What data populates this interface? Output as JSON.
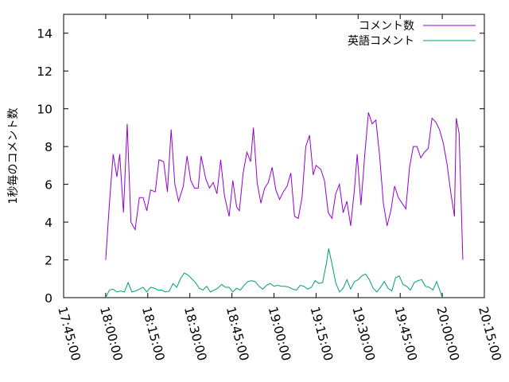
{
  "chart_data": {
    "type": "line",
    "ylabel": "1秒毎のコメント数",
    "xlabel": "",
    "title": "",
    "ylim": [
      0,
      15
    ],
    "xlim": [
      "17:45:00",
      "20:15:00"
    ],
    "yticks": [
      0,
      2,
      4,
      6,
      8,
      10,
      12,
      14
    ],
    "xticks": [
      "17:45:00",
      "18:00:00",
      "18:15:00",
      "18:30:00",
      "18:45:00",
      "19:00:00",
      "19:15:00",
      "19:30:00",
      "19:45:00",
      "20:00:00",
      "20:15:00"
    ],
    "legend_position": "top-right",
    "grid": false,
    "series": [
      {
        "name": "コメント数",
        "color": "#9400d3",
        "points": [
          [
            "18:00:00",
            2.0
          ],
          [
            "18:01:20",
            5.0
          ],
          [
            "18:02:40",
            7.6
          ],
          [
            "18:04:00",
            6.4
          ],
          [
            "18:05:00",
            7.6
          ],
          [
            "18:06:20",
            4.5
          ],
          [
            "18:07:40",
            9.2
          ],
          [
            "18:09:00",
            4.0
          ],
          [
            "18:10:30",
            3.6
          ],
          [
            "18:12:00",
            5.3
          ],
          [
            "18:13:20",
            5.3
          ],
          [
            "18:14:40",
            4.6
          ],
          [
            "18:16:00",
            5.7
          ],
          [
            "18:17:40",
            5.6
          ],
          [
            "18:19:00",
            7.3
          ],
          [
            "18:20:40",
            7.2
          ],
          [
            "18:22:00",
            5.6
          ],
          [
            "18:23:20",
            8.9
          ],
          [
            "18:24:40",
            6.0
          ],
          [
            "18:26:00",
            5.1
          ],
          [
            "18:27:40",
            5.9
          ],
          [
            "18:29:00",
            7.5
          ],
          [
            "18:30:20",
            6.2
          ],
          [
            "18:31:40",
            5.8
          ],
          [
            "18:33:00",
            5.8
          ],
          [
            "18:34:00",
            7.5
          ],
          [
            "18:35:40",
            6.3
          ],
          [
            "18:37:00",
            5.8
          ],
          [
            "18:38:20",
            6.1
          ],
          [
            "18:39:40",
            5.5
          ],
          [
            "18:41:00",
            7.3
          ],
          [
            "18:42:20",
            5.4
          ],
          [
            "18:44:00",
            4.3
          ],
          [
            "18:45:20",
            6.2
          ],
          [
            "18:46:40",
            4.8
          ],
          [
            "18:47:40",
            4.6
          ],
          [
            "18:49:00",
            6.6
          ],
          [
            "18:50:20",
            7.7
          ],
          [
            "18:51:40",
            7.2
          ],
          [
            "18:52:40",
            9.0
          ],
          [
            "18:54:00",
            6.1
          ],
          [
            "18:55:20",
            5.0
          ],
          [
            "18:56:40",
            5.8
          ],
          [
            "18:58:00",
            6.1
          ],
          [
            "18:59:20",
            6.9
          ],
          [
            "19:00:40",
            5.7
          ],
          [
            "19:02:00",
            5.2
          ],
          [
            "19:03:20",
            5.6
          ],
          [
            "19:04:40",
            5.9
          ],
          [
            "19:06:00",
            6.6
          ],
          [
            "19:07:20",
            4.3
          ],
          [
            "19:08:40",
            4.2
          ],
          [
            "19:10:00",
            5.3
          ],
          [
            "19:11:20",
            8.0
          ],
          [
            "19:12:40",
            8.6
          ],
          [
            "19:14:00",
            6.5
          ],
          [
            "19:15:00",
            7.0
          ],
          [
            "19:16:40",
            6.8
          ],
          [
            "19:18:00",
            6.2
          ],
          [
            "19:19:20",
            4.5
          ],
          [
            "19:20:40",
            4.2
          ],
          [
            "19:22:00",
            5.5
          ],
          [
            "19:23:20",
            6.0
          ],
          [
            "19:24:40",
            4.5
          ],
          [
            "19:26:00",
            5.1
          ],
          [
            "19:27:20",
            3.8
          ],
          [
            "19:28:40",
            5.7
          ],
          [
            "19:29:40",
            7.6
          ],
          [
            "19:31:00",
            4.9
          ],
          [
            "19:32:20",
            7.5
          ],
          [
            "19:33:40",
            9.8
          ],
          [
            "19:35:00",
            9.2
          ],
          [
            "19:36:20",
            9.4
          ],
          [
            "19:37:40",
            7.5
          ],
          [
            "19:39:00",
            5.0
          ],
          [
            "19:40:20",
            3.8
          ],
          [
            "19:41:40",
            4.6
          ],
          [
            "19:43:00",
            5.9
          ],
          [
            "19:44:20",
            5.3
          ],
          [
            "19:45:40",
            5.0
          ],
          [
            "19:47:00",
            4.7
          ],
          [
            "19:48:20",
            6.9
          ],
          [
            "19:49:40",
            8.0
          ],
          [
            "19:51:00",
            8.0
          ],
          [
            "19:52:20",
            7.4
          ],
          [
            "19:53:40",
            7.7
          ],
          [
            "19:55:00",
            7.9
          ],
          [
            "19:56:20",
            9.5
          ],
          [
            "19:57:40",
            9.3
          ],
          [
            "19:59:00",
            8.9
          ],
          [
            "20:00:20",
            8.2
          ],
          [
            "20:01:40",
            7.1
          ],
          [
            "20:03:00",
            5.6
          ],
          [
            "20:04:20",
            4.3
          ],
          [
            "20:05:00",
            9.5
          ],
          [
            "20:06:00",
            8.7
          ],
          [
            "20:07:20",
            2.0
          ]
        ]
      },
      {
        "name": "英語コメント",
        "color": "#009e73",
        "points": [
          [
            "18:00:00",
            0.0
          ],
          [
            "18:01:20",
            0.4
          ],
          [
            "18:02:40",
            0.45
          ],
          [
            "18:04:00",
            0.3
          ],
          [
            "18:05:20",
            0.35
          ],
          [
            "18:06:40",
            0.3
          ],
          [
            "18:08:00",
            0.8
          ],
          [
            "18:09:20",
            0.3
          ],
          [
            "18:10:40",
            0.35
          ],
          [
            "18:12:00",
            0.45
          ],
          [
            "18:13:20",
            0.55
          ],
          [
            "18:14:40",
            0.3
          ],
          [
            "18:16:00",
            0.55
          ],
          [
            "18:17:20",
            0.5
          ],
          [
            "18:18:40",
            0.4
          ],
          [
            "18:20:00",
            0.4
          ],
          [
            "18:21:20",
            0.3
          ],
          [
            "18:22:40",
            0.35
          ],
          [
            "18:24:00",
            0.75
          ],
          [
            "18:25:20",
            0.55
          ],
          [
            "18:26:40",
            1.0
          ],
          [
            "18:28:00",
            1.3
          ],
          [
            "18:29:20",
            1.2
          ],
          [
            "18:30:40",
            1.0
          ],
          [
            "18:32:00",
            0.8
          ],
          [
            "18:33:20",
            0.5
          ],
          [
            "18:34:40",
            0.4
          ],
          [
            "18:36:00",
            0.6
          ],
          [
            "18:37:20",
            0.3
          ],
          [
            "18:38:40",
            0.4
          ],
          [
            "18:40:00",
            0.5
          ],
          [
            "18:41:20",
            0.7
          ],
          [
            "18:42:40",
            0.55
          ],
          [
            "18:44:00",
            0.55
          ],
          [
            "18:45:20",
            0.3
          ],
          [
            "18:46:40",
            0.5
          ],
          [
            "18:48:00",
            0.4
          ],
          [
            "18:49:20",
            0.65
          ],
          [
            "18:50:40",
            0.85
          ],
          [
            "18:52:00",
            0.9
          ],
          [
            "18:53:20",
            0.85
          ],
          [
            "18:54:40",
            0.6
          ],
          [
            "18:56:00",
            0.45
          ],
          [
            "18:57:20",
            0.65
          ],
          [
            "18:58:40",
            0.75
          ],
          [
            "19:00:00",
            0.6
          ],
          [
            "19:01:20",
            0.65
          ],
          [
            "19:02:40",
            0.6
          ],
          [
            "19:04:00",
            0.6
          ],
          [
            "19:05:20",
            0.55
          ],
          [
            "19:06:40",
            0.45
          ],
          [
            "19:08:00",
            0.4
          ],
          [
            "19:09:20",
            0.65
          ],
          [
            "19:10:40",
            0.6
          ],
          [
            "19:12:00",
            0.45
          ],
          [
            "19:13:20",
            0.55
          ],
          [
            "19:14:40",
            0.9
          ],
          [
            "19:16:00",
            0.75
          ],
          [
            "19:17:20",
            0.8
          ],
          [
            "19:18:40",
            1.8
          ],
          [
            "19:19:30",
            2.6
          ],
          [
            "19:20:40",
            1.8
          ],
          [
            "19:22:00",
            0.8
          ],
          [
            "19:23:20",
            0.3
          ],
          [
            "19:24:40",
            0.5
          ],
          [
            "19:26:00",
            0.95
          ],
          [
            "19:27:20",
            0.45
          ],
          [
            "19:28:40",
            0.85
          ],
          [
            "19:30:00",
            0.95
          ],
          [
            "19:31:20",
            1.15
          ],
          [
            "19:32:40",
            1.25
          ],
          [
            "19:34:00",
            0.95
          ],
          [
            "19:35:20",
            0.5
          ],
          [
            "19:36:40",
            0.3
          ],
          [
            "19:38:00",
            0.55
          ],
          [
            "19:39:20",
            0.85
          ],
          [
            "19:40:40",
            0.5
          ],
          [
            "19:42:00",
            0.35
          ],
          [
            "19:43:20",
            1.05
          ],
          [
            "19:44:40",
            1.15
          ],
          [
            "19:46:00",
            0.7
          ],
          [
            "19:47:20",
            0.6
          ],
          [
            "19:48:40",
            0.4
          ],
          [
            "19:50:00",
            0.8
          ],
          [
            "19:51:20",
            0.9
          ],
          [
            "19:52:40",
            0.95
          ],
          [
            "19:54:00",
            0.6
          ],
          [
            "19:55:20",
            0.55
          ],
          [
            "19:56:40",
            0.4
          ],
          [
            "19:58:00",
            0.85
          ],
          [
            "19:59:20",
            0.3
          ],
          [
            "20:00:00",
            0.0
          ]
        ]
      }
    ]
  }
}
